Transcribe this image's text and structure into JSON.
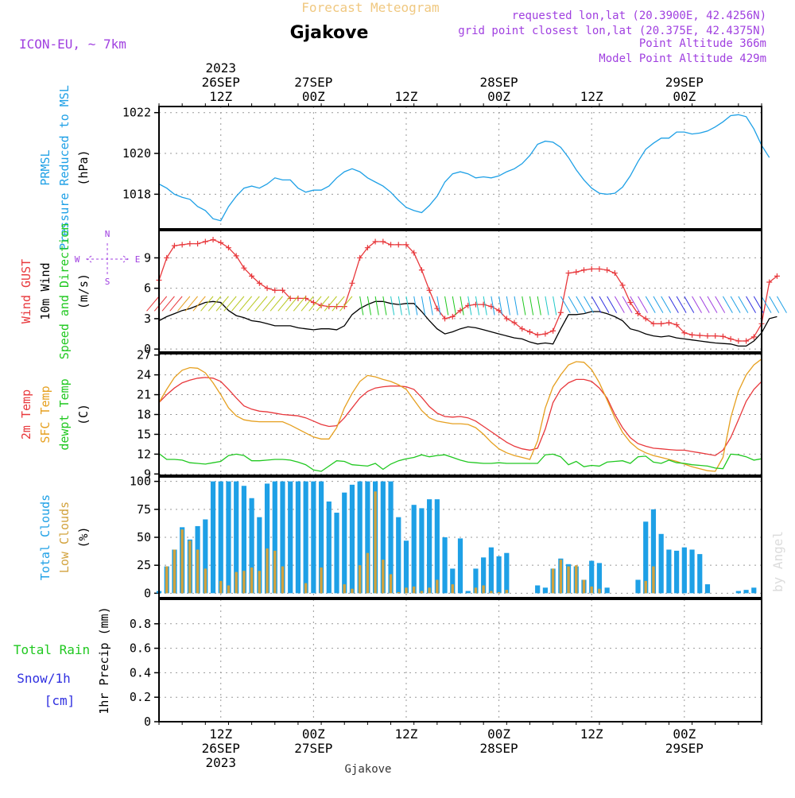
{
  "header": {
    "supertitle": "Forecast Meteogram",
    "title": "Gjakove",
    "model": "ICON-EU, ~ 7km",
    "requested": "requested lon,lat (20.3900E, 42.4256N)",
    "grid_point": "grid point closest lon,lat (20.375E, 42.4375N)",
    "point_alt": "Point Altitude 366m",
    "model_alt": "Model Point Altitude 429m",
    "credit": "by Angel",
    "footer_station": "Gjakove"
  },
  "colors": {
    "pressure": "#1ea0e6",
    "gust": "#e8383c",
    "wind": "#000000",
    "t2m": "#e8383c",
    "tsfc": "#e6a020",
    "dewpt": "#20c820",
    "total_clouds": "#1ea0e6",
    "low_clouds": "#d2a23c",
    "rain": "#20c820",
    "snow": "#3030e0",
    "header_purple": "#a040e0",
    "supertitle": "#f0c880",
    "frame": "#000000",
    "grid": "#999999"
  },
  "chart_data": {
    "type": "line",
    "time_axis": {
      "start": "2023-09-26 04Z",
      "end": "2023-09-29 14Z",
      "step_hours": 1,
      "top_labels": [
        {
          "lines": [
            "2023",
            "26SEP",
            "12Z"
          ],
          "time": "2023-09-26 12Z"
        },
        {
          "lines": [
            "27SEP",
            "00Z"
          ],
          "time": "2023-09-27 00Z"
        },
        {
          "lines": [
            "12Z"
          ],
          "time": "2023-09-27 12Z"
        },
        {
          "lines": [
            "28SEP",
            "00Z"
          ],
          "time": "2023-09-28 00Z"
        },
        {
          "lines": [
            "12Z"
          ],
          "time": "2023-09-28 12Z"
        },
        {
          "lines": [
            "29SEP",
            "00Z"
          ],
          "time": "2023-09-29 00Z"
        }
      ],
      "bottom_labels": [
        {
          "lines": [
            "12Z",
            "26SEP",
            "2023"
          ],
          "time": "2023-09-26 12Z"
        },
        {
          "lines": [
            "00Z",
            "27SEP"
          ],
          "time": "2023-09-27 00Z"
        },
        {
          "lines": [
            "12Z"
          ],
          "time": "2023-09-27 12Z"
        },
        {
          "lines": [
            "00Z",
            "28SEP"
          ],
          "time": "2023-09-28 00Z"
        },
        {
          "lines": [
            "12Z"
          ],
          "time": "2023-09-28 12Z"
        },
        {
          "lines": [
            "00Z",
            "29SEP"
          ],
          "time": "2023-09-29 00Z"
        }
      ]
    },
    "panels": [
      {
        "id": "pressure",
        "ylabel_lines": [
          {
            "text": "PRMSL",
            "color": "#1ea0e6"
          },
          {
            "text": "Pressure Reduced to MSL",
            "color": "#1ea0e6"
          },
          {
            "text": "(hPa)",
            "color": "#000000"
          }
        ],
        "ylim": [
          1016.3,
          1022.3
        ],
        "yticks": [
          1018,
          1020,
          1022
        ],
        "series": [
          {
            "key": "prmsl",
            "values": [
              1018.5,
              1018.3,
              1018.0,
              1017.85,
              1017.75,
              1017.4,
              1017.2,
              1016.8,
              1016.7,
              1017.4,
              1017.9,
              1018.3,
              1018.4,
              1018.3,
              1018.5,
              1018.8,
              1018.7,
              1018.7,
              1018.3,
              1018.1,
              1018.2,
              1018.2,
              1018.4,
              1018.8,
              1019.1,
              1019.25,
              1019.1,
              1018.8,
              1018.6,
              1018.4,
              1018.1,
              1017.7,
              1017.35,
              1017.2,
              1017.1,
              1017.45,
              1017.9,
              1018.6,
              1019.0,
              1019.1,
              1019.0,
              1018.8,
              1018.85,
              1018.8,
              1018.9,
              1019.1,
              1019.25,
              1019.5,
              1019.9,
              1020.45,
              1020.6,
              1020.55,
              1020.3,
              1019.8,
              1019.2,
              1018.7,
              1018.3,
              1018.05,
              1018.0,
              1018.05,
              1018.35,
              1018.9,
              1019.6,
              1020.2,
              1020.5,
              1020.75,
              1020.75,
              1021.05,
              1021.05,
              1020.95,
              1021.0,
              1021.1,
              1021.3,
              1021.55,
              1021.85,
              1021.9,
              1021.8,
              1021.2,
              1020.4,
              1019.8
            ]
          }
        ]
      },
      {
        "id": "wind",
        "ylabel_lines": [
          {
            "text": "Wind GUST",
            "color": "#e8383c"
          },
          {
            "text": "10m Wind",
            "color": "#000000"
          },
          {
            "text": "Speed and Direction",
            "color": "#20c820"
          },
          {
            "text": "(m/s)",
            "color": "#000000"
          }
        ],
        "ylim": [
          -0.3,
          11.7
        ],
        "yticks": [
          0,
          3,
          6,
          9
        ],
        "compass": {
          "n": "N",
          "s": "S",
          "w": "W",
          "e": "E"
        },
        "series": [
          {
            "key": "gust",
            "values": [
              6.8,
              9.0,
              10.2,
              10.3,
              10.4,
              10.4,
              10.6,
              10.8,
              10.5,
              10.0,
              9.2,
              8.0,
              7.2,
              6.5,
              6.0,
              5.8,
              5.8,
              5.0,
              5.0,
              5.0,
              4.6,
              4.3,
              4.2,
              4.2,
              4.2,
              6.5,
              9.0,
              10.0,
              10.6,
              10.6,
              10.3,
              10.3,
              10.3,
              9.5,
              7.8,
              5.8,
              4.0,
              3.0,
              3.2,
              3.8,
              4.3,
              4.4,
              4.4,
              4.2,
              3.8,
              3.0,
              2.6,
              2.0,
              1.7,
              1.4,
              1.5,
              1.8,
              3.6,
              7.5,
              7.6,
              7.8,
              7.9,
              7.9,
              7.8,
              7.5,
              6.3,
              4.6,
              3.5,
              3.0,
              2.5,
              2.5,
              2.6,
              2.4,
              1.6,
              1.4,
              1.35,
              1.3,
              1.3,
              1.25,
              1.0,
              0.8,
              0.8,
              1.2,
              2.5,
              6.6,
              7.2
            ]
          },
          {
            "key": "wind10m",
            "values": [
              2.8,
              3.2,
              3.5,
              3.8,
              4.0,
              4.3,
              4.6,
              4.7,
              4.6,
              3.8,
              3.3,
              3.1,
              2.8,
              2.7,
              2.5,
              2.3,
              2.3,
              2.3,
              2.1,
              2.0,
              1.9,
              2.0,
              2.0,
              1.9,
              2.3,
              3.4,
              4.0,
              4.4,
              4.7,
              4.7,
              4.5,
              4.4,
              4.5,
              4.5,
              3.7,
              2.8,
              2.0,
              1.5,
              1.7,
              2.0,
              2.2,
              2.1,
              1.9,
              1.7,
              1.5,
              1.3,
              1.1,
              1.0,
              0.7,
              0.5,
              0.6,
              0.5,
              2.0,
              3.4,
              3.4,
              3.5,
              3.7,
              3.7,
              3.5,
              3.2,
              2.8,
              2.0,
              1.8,
              1.5,
              1.3,
              1.2,
              1.3,
              1.1,
              1.0,
              0.9,
              0.8,
              0.7,
              0.6,
              0.55,
              0.5,
              0.3,
              0.3,
              0.8,
              1.6,
              3.0,
              3.2
            ]
          }
        ]
      },
      {
        "id": "temp",
        "ylabel_lines": [
          {
            "text": "2m Temp",
            "color": "#e8383c"
          },
          {
            "text": "SFC Temp",
            "color": "#e6a020"
          },
          {
            "text": "dewpt Temp",
            "color": "#20c820"
          },
          {
            "text": "(C)",
            "color": "#000000"
          }
        ],
        "ylim": [
          8.8,
          27.2
        ],
        "yticks": [
          9,
          12,
          15,
          18,
          21,
          24,
          27
        ],
        "series": [
          {
            "key": "t2m",
            "values": [
              19.8,
              21.0,
              22.0,
              22.8,
              23.2,
              23.5,
              23.6,
              23.5,
              23.0,
              21.8,
              20.5,
              19.3,
              18.8,
              18.5,
              18.4,
              18.2,
              18.0,
              17.9,
              17.8,
              17.5,
              17.0,
              16.5,
              16.2,
              16.3,
              17.5,
              19.0,
              20.5,
              21.5,
              22.0,
              22.2,
              22.3,
              22.3,
              22.2,
              21.8,
              20.6,
              19.2,
              18.2,
              17.7,
              17.6,
              17.7,
              17.5,
              17.0,
              16.2,
              15.4,
              14.6,
              13.8,
              13.2,
              12.8,
              12.6,
              12.9,
              15.8,
              19.8,
              21.8,
              22.8,
              23.3,
              23.3,
              23.0,
              22.0,
              20.5,
              18.0,
              16.0,
              14.5,
              13.6,
              13.2,
              12.9,
              12.8,
              12.7,
              12.6,
              12.6,
              12.4,
              12.2,
              12.0,
              11.8,
              12.6,
              14.5,
              17.2,
              20.0,
              21.8,
              23.0
            ]
          },
          {
            "key": "tsfc",
            "values": [
              19.8,
              21.8,
              23.6,
              24.7,
              25.1,
              25.0,
              24.3,
              22.8,
              21.0,
              19.0,
              17.8,
              17.2,
              17.0,
              16.9,
              16.9,
              16.9,
              16.9,
              16.4,
              15.8,
              15.2,
              14.6,
              14.3,
              14.3,
              16.0,
              19.0,
              21.2,
              23.0,
              23.9,
              23.7,
              23.3,
              23.0,
              22.5,
              21.8,
              20.2,
              18.6,
              17.5,
              17.0,
              16.8,
              16.6,
              16.6,
              16.5,
              16.0,
              15.0,
              13.8,
              12.8,
              12.2,
              11.8,
              11.5,
              11.2,
              14.0,
              19.0,
              22.2,
              24.0,
              25.5,
              26.0,
              25.9,
              24.8,
              22.8,
              20.2,
              17.5,
              15.3,
              13.8,
              12.8,
              12.2,
              11.8,
              11.5,
              11.2,
              10.9,
              10.5,
              10.1,
              9.8,
              9.5,
              9.4,
              11.5,
              17.5,
              21.5,
              24.0,
              25.5,
              26.4
            ]
          },
          {
            "key": "dewpt",
            "values": [
              12.1,
              11.2,
              11.2,
              11.1,
              10.7,
              10.6,
              10.5,
              10.7,
              10.9,
              11.8,
              12.0,
              11.8,
              11.0,
              11.0,
              11.1,
              11.2,
              11.2,
              11.1,
              10.8,
              10.4,
              9.6,
              9.4,
              10.2,
              11.0,
              10.9,
              10.4,
              10.3,
              10.2,
              10.6,
              9.7,
              10.5,
              11.0,
              11.3,
              11.5,
              11.9,
              11.6,
              11.8,
              11.9,
              11.5,
              11.1,
              10.8,
              10.7,
              10.6,
              10.6,
              10.7,
              10.6,
              10.6,
              10.6,
              10.6,
              10.6,
              11.9,
              12.0,
              11.6,
              10.4,
              10.9,
              10.1,
              10.3,
              10.2,
              10.8,
              10.9,
              11.0,
              10.6,
              11.6,
              11.7,
              10.8,
              10.6,
              11.1,
              10.7,
              10.6,
              10.4,
              10.3,
              10.2,
              9.9,
              9.8,
              12.0,
              11.9,
              11.6,
              11.1,
              11.3
            ]
          }
        ]
      },
      {
        "id": "clouds",
        "type": "bar",
        "ylabel_lines": [
          {
            "text": "Total Clouds",
            "color": "#1ea0e6"
          },
          {
            "text": "Low Clouds",
            "color": "#d2a23c"
          },
          {
            "text": "(%)",
            "color": "#000000"
          }
        ],
        "ylim": [
          -4,
          104
        ],
        "yticks": [
          0,
          25,
          50,
          75,
          100
        ],
        "series": [
          {
            "key": "total",
            "values": [
              2,
              24,
              39,
              59,
              48,
              60,
              66,
              100,
              100,
              100,
              100,
              96,
              85,
              68,
              98,
              100,
              100,
              100,
              100,
              100,
              100,
              100,
              82,
              72,
              90,
              97,
              100,
              100,
              100,
              100,
              100,
              68,
              47,
              79,
              76,
              84,
              84,
              50,
              22,
              49,
              2,
              22,
              32,
              41,
              33,
              36,
              0,
              0,
              0,
              7,
              5,
              22,
              31,
              26,
              24,
              12,
              29,
              27,
              5,
              0,
              0,
              0,
              12,
              64,
              75,
              53,
              39,
              38,
              41,
              39,
              35,
              8,
              0,
              0,
              0,
              2,
              3,
              5
            ]
          },
          {
            "key": "low",
            "values": [
              0,
              24,
              39,
              57,
              47,
              39,
              22,
              0,
              11,
              7,
              19,
              20,
              23,
              20,
              40,
              38,
              24,
              0,
              0,
              9,
              0,
              23,
              0,
              0,
              8,
              4,
              25,
              36,
              91,
              30,
              17,
              1,
              5,
              6,
              2,
              5,
              12,
              0,
              8,
              0,
              0,
              5,
              7,
              2,
              1,
              3,
              0,
              0,
              0,
              0,
              0,
              22,
              30,
              24,
              25,
              12,
              6,
              4,
              0,
              0,
              0,
              0,
              0,
              11,
              24,
              0,
              0,
              0,
              0,
              0,
              0,
              0,
              0,
              0,
              0,
              0,
              0,
              0
            ]
          }
        ]
      },
      {
        "id": "precip",
        "ylabel_lines": [
          {
            "text": "1hr Precip (mm)",
            "color": "#000000"
          }
        ],
        "side_labels": [
          {
            "text": "Total  Rain",
            "color": "#20c820"
          },
          {
            "text": "Snow/1h",
            "color": "#3030e0"
          },
          {
            "text": "[cm]",
            "color": "#3030e0"
          }
        ],
        "ylim": [
          0,
          1.0
        ],
        "yticks": [
          0,
          0.2,
          0.4,
          0.6,
          0.8
        ],
        "ytick_labels": [
          "0",
          "0.2",
          "0.4",
          "0.6",
          "0.8"
        ],
        "series": []
      }
    ]
  }
}
